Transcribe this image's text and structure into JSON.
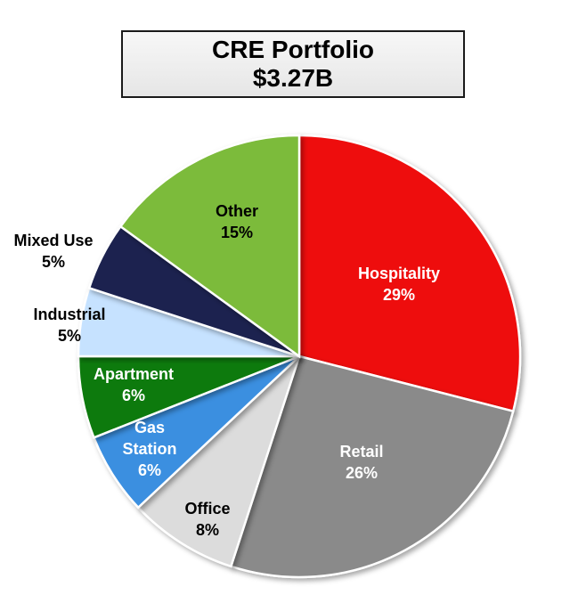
{
  "header": {
    "title": "CRE Portfolio",
    "subtitle": "$3.27B"
  },
  "chart_data": {
    "type": "pie",
    "title": "CRE Portfolio",
    "subtitle": "$3.27B",
    "start": "12 o'clock, clockwise",
    "slices": [
      {
        "label": "Hospitality",
        "value": 29,
        "display": "29%",
        "color": "#ee1111",
        "text_color": "#ffffff",
        "lines": [
          "Hospitality"
        ]
      },
      {
        "label": "Retail",
        "value": 26,
        "display": "26%",
        "color": "#8a8a8a",
        "text_color": "#ffffff",
        "lines": [
          "Retail"
        ]
      },
      {
        "label": "Office",
        "value": 8,
        "display": "8%",
        "color": "#dcdcdc",
        "text_color": "#000000",
        "lines": [
          "Office"
        ]
      },
      {
        "label": "Gas Station",
        "value": 6,
        "display": "6%",
        "color": "#3b8fe0",
        "text_color": "#ffffff",
        "lines": [
          "Gas",
          "Station"
        ]
      },
      {
        "label": "Apartment",
        "value": 6,
        "display": "6%",
        "color": "#0f7a0f",
        "text_color": "#ffffff",
        "lines": [
          "Apartment"
        ]
      },
      {
        "label": "Industrial",
        "value": 5,
        "display": "5%",
        "color": "#c6e2ff",
        "text_color": "#000000",
        "lines": [
          "Industrial"
        ]
      },
      {
        "label": "Mixed Use",
        "value": 5,
        "display": "5%",
        "color": "#1c2450",
        "text_color": "#000000",
        "lines": [
          "Mixed Use"
        ]
      },
      {
        "label": "Other",
        "value": 15,
        "display": "15%",
        "color": "#7cbb3a",
        "text_color": "#000000",
        "lines": [
          "Other"
        ]
      }
    ]
  }
}
